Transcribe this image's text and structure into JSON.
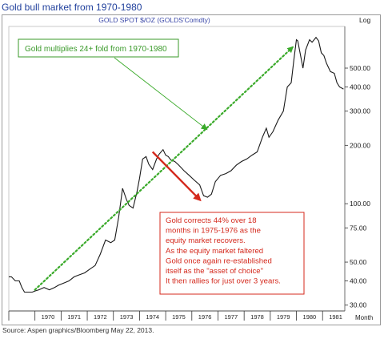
{
  "page_title": "Gold bull market from 1970-1980",
  "source_note": "Source: Aspen graphics/Bloomberg May 22, 2013.",
  "chart_data": {
    "type": "line",
    "title": "GOLD SPOT $/OZ (GOLDS'Comdty)",
    "yscale_label": "Log",
    "xlabel": "Month",
    "yscale": "log",
    "ylim": [
      28,
      820
    ],
    "xlim": [
      1969.0,
      1981.85
    ],
    "x_ticks": [
      "1970",
      "1971",
      "1972",
      "1973",
      "1974",
      "1975",
      "1976",
      "1977",
      "1978",
      "1979",
      "1980",
      "1981"
    ],
    "y_ticks": [
      "30.00",
      "40.00",
      "50.00",
      "75.00",
      "100.00",
      "200.00",
      "300.00",
      "400.00",
      "500.00"
    ],
    "y_tick_values": [
      30,
      40,
      50,
      75,
      100,
      200,
      300,
      400,
      500
    ],
    "grid": false,
    "series": [
      {
        "color": "#1a1a1a",
        "x": [
          1969.0,
          1969.1,
          1969.25,
          1969.4,
          1969.5,
          1969.6,
          1969.75,
          1969.9,
          1970.0,
          1970.15,
          1970.35,
          1970.55,
          1970.75,
          1970.9,
          1971.1,
          1971.3,
          1971.5,
          1971.7,
          1971.9,
          1972.1,
          1972.3,
          1972.5,
          1972.7,
          1972.9,
          1973.05,
          1973.2,
          1973.35,
          1973.5,
          1973.6,
          1973.75,
          1973.9,
          1974.0,
          1974.12,
          1974.25,
          1974.35,
          1974.5,
          1974.65,
          1974.75,
          1974.9,
          1975.0,
          1975.1,
          1975.2,
          1975.35,
          1975.5,
          1975.7,
          1975.9,
          1976.1,
          1976.3,
          1976.45,
          1976.6,
          1976.75,
          1976.9,
          1977.1,
          1977.3,
          1977.5,
          1977.7,
          1977.9,
          1978.1,
          1978.3,
          1978.5,
          1978.7,
          1978.85,
          1978.95,
          1979.1,
          1979.3,
          1979.5,
          1979.65,
          1979.8,
          1979.9,
          1980.0,
          1980.05,
          1980.15,
          1980.25,
          1980.35,
          1980.5,
          1980.6,
          1980.75,
          1980.85,
          1980.95,
          1981.05,
          1981.15,
          1981.3,
          1981.45,
          1981.55,
          1981.65,
          1981.8
        ],
        "y": [
          42,
          42,
          40,
          40,
          37,
          35,
          35,
          35,
          35.5,
          36,
          37,
          36,
          37,
          38,
          39,
          40,
          42,
          43,
          44,
          46,
          48,
          55,
          65,
          63,
          65,
          85,
          120,
          105,
          98,
          95,
          115,
          135,
          170,
          175,
          160,
          150,
          170,
          180,
          190,
          178,
          175,
          168,
          165,
          158,
          148,
          140,
          132,
          125,
          110,
          108,
          112,
          130,
          140,
          143,
          148,
          158,
          165,
          170,
          178,
          185,
          220,
          245,
          220,
          235,
          270,
          300,
          400,
          420,
          550,
          700,
          690,
          590,
          500,
          620,
          700,
          680,
          720,
          690,
          600,
          580,
          530,
          480,
          470,
          420,
          400,
          390
        ]
      }
    ],
    "annotations": [
      {
        "text": "Gold multiplies 24+ fold from 1970-1980",
        "color": "#3a9a2a",
        "location": "top-left"
      },
      {
        "text": "Gold corrects 44% over 18 months in 1975-1976 as the equity market recovers. As the equity market faltered Gold once again re-established itself as the \"asset of choice\" It then rallies for just over 3 years.",
        "lines": [
          "Gold corrects 44% over 18",
          "months in 1975-1976 as the",
          "equity market recovers.",
          "As the equity market faltered",
          "Gold once again re-established",
          "itself as the \"asset of choice\"",
          "It then rallies for just over 3 years."
        ],
        "color": "#d42a1e",
        "location": "bottom-middle"
      }
    ],
    "trend_arrow": {
      "color": "#3aaa2a",
      "x_from": 1970.0,
      "y_from": 36,
      "x_to": 1979.85,
      "y_to": 640
    },
    "correction_arrow": {
      "color": "#d42a1e",
      "x_from": 1974.5,
      "y_from": 185,
      "x_to": 1976.3,
      "y_to": 105
    }
  }
}
